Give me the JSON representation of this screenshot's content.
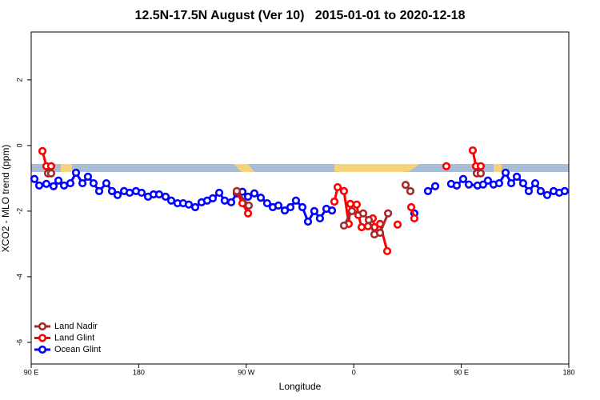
{
  "chart_data": {
    "type": "line",
    "title": "12.5N-17.5N August (Ver 10)   2015-01-01 to 2020-12-18",
    "x_label": "Longitude",
    "y_label": "XCO2 - MLO trend (ppm)",
    "xlim": [
      90,
      540
    ],
    "xticks": [
      {
        "value": 90,
        "label": "90 E"
      },
      180,
      {
        "value": 270,
        "label": "90 W"
      },
      {
        "value": 360,
        "label": "0"
      },
      {
        "value": 450,
        "label": "90 E"
      },
      {
        "value": 540,
        "label": "180"
      }
    ],
    "ylim": [
      -6.66,
      3.46
    ],
    "yticks": [
      2,
      0,
      -2,
      -4,
      -6
    ],
    "legend": "bottom-left",
    "series": [
      {
        "name": "Land Nadir",
        "color": "#a52a2a",
        "x": [
          104.1,
          106.7,
          null,
          262.1,
          272.1,
          null,
          351.8,
          358.5,
          367.9,
          372.6,
          377.3,
          382.0,
          388.7,
          null,
          403.4,
          407.4,
          null,
          463.0,
          466.3
        ],
        "values": [
          -0.85,
          -0.85,
          null,
          -1.39,
          -1.83,
          null,
          -2.44,
          -2.0,
          -2.07,
          -2.27,
          -2.71,
          -2.66,
          -2.07,
          null,
          -1.2,
          -1.39,
          null,
          -0.85,
          -0.85
        ]
      },
      {
        "name": "Land Glint",
        "color": "#ff0000",
        "x": [
          99.4,
          102.7,
          106.7,
          null,
          262.1,
          266.8,
          271.5,
          null,
          343.8,
          346.5,
          351.8,
          355.8,
          357.2,
          362.5,
          363.9,
          366.6,
          371.9,
          375.9,
          377.3,
          382.0,
          388.0,
          null,
          396.7,
          null,
          408.1,
          410.7,
          null,
          437.5,
          null,
          459.6,
          462.3,
          466.3
        ],
        "values": [
          -0.17,
          -0.63,
          -0.63,
          null,
          -1.41,
          -1.76,
          -2.07,
          null,
          -1.71,
          -1.27,
          -1.39,
          -2.39,
          -1.78,
          -1.8,
          -2.12,
          -2.49,
          -2.46,
          -2.22,
          -2.49,
          -2.39,
          -3.22,
          null,
          -2.41,
          null,
          -1.88,
          -2.22,
          null,
          -0.63,
          null,
          -0.15,
          -0.63,
          -0.63
        ]
      },
      {
        "name": "Ocean Glint",
        "color": "#0000ff",
        "x": [
          92.7,
          96.7,
          102.7,
          108.7,
          112.8,
          117.5,
          122.8,
          127.5,
          132.9,
          137.5,
          142.2,
          146.9,
          152.9,
          157.6,
          162.3,
          167.7,
          172.4,
          177.7,
          182.4,
          187.8,
          192.4,
          197.1,
          202.5,
          207.2,
          212.5,
          217.2,
          221.9,
          227.3,
          232.6,
          237.3,
          242.0,
          247.4,
          252.0,
          257.4,
          262.1,
          266.8,
          271.5,
          276.8,
          282.2,
          287.5,
          292.2,
          296.9,
          302.3,
          307.0,
          311.6,
          317.0,
          321.7,
          327.0,
          331.7,
          337.1,
          341.8,
          null,
          410.7,
          null,
          422.1,
          428.2,
          null,
          441.5,
          446.2,
          451.6,
          456.3,
          463.6,
          468.3,
          472.3,
          477.0,
          481.7,
          487.1,
          491.8,
          496.5,
          501.8,
          506.5,
          511.9,
          516.5,
          521.9,
          527.3,
          532.0,
          536.6
        ],
        "values": [
          -1.02,
          -1.22,
          -1.17,
          -1.24,
          -1.07,
          -1.22,
          -1.15,
          -0.83,
          -1.15,
          -0.95,
          -1.15,
          -1.39,
          -1.15,
          -1.39,
          -1.51,
          -1.39,
          -1.44,
          -1.39,
          -1.44,
          -1.56,
          -1.49,
          -1.49,
          -1.56,
          -1.68,
          -1.76,
          -1.76,
          -1.8,
          -1.88,
          -1.73,
          -1.68,
          -1.61,
          -1.44,
          -1.68,
          -1.73,
          -1.46,
          -1.41,
          -1.56,
          -1.46,
          -1.59,
          -1.76,
          -1.88,
          -1.83,
          -1.98,
          -1.88,
          -1.68,
          -1.88,
          -2.32,
          -2.0,
          -2.22,
          -1.93,
          -1.98,
          null,
          -2.07,
          null,
          -1.39,
          -1.24,
          null,
          -1.17,
          -1.22,
          -1.02,
          -1.19,
          -1.22,
          -1.19,
          -1.07,
          -1.19,
          -1.15,
          -0.83,
          -1.15,
          -0.95,
          -1.15,
          -1.39,
          -1.15,
          -1.39,
          -1.51,
          -1.39,
          -1.44,
          -1.39
        ]
      }
    ]
  }
}
